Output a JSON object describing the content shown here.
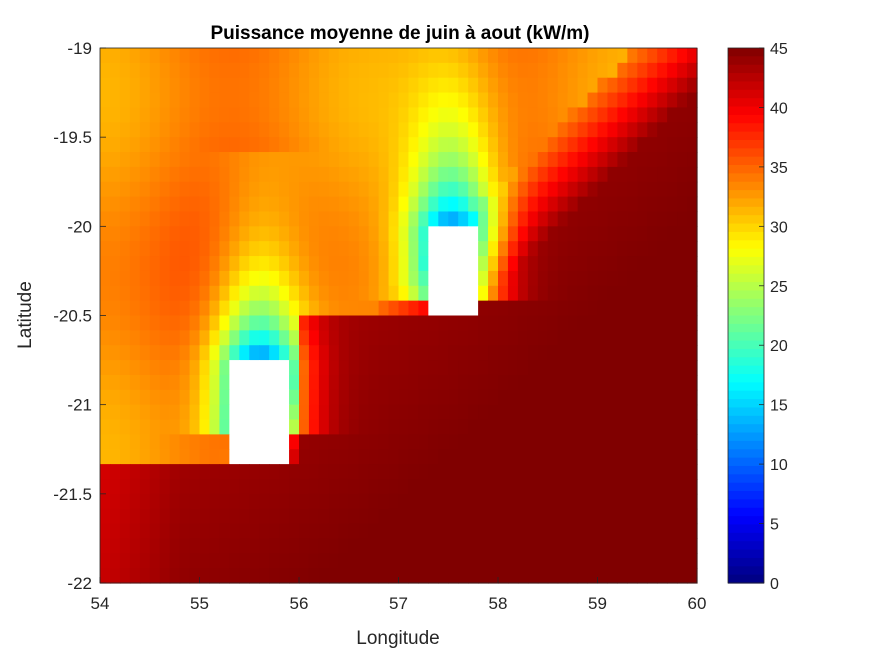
{
  "chart_data": {
    "type": "heatmap",
    "title": "Puissance moyenne de juin à aout (kW/m)",
    "xlabel": "Longitude",
    "ylabel": "Latitude",
    "xlim": [
      54,
      60
    ],
    "ylim": [
      -22,
      -19
    ],
    "x_ticks": [
      "54",
      "55",
      "56",
      "57",
      "58",
      "59",
      "60"
    ],
    "y_ticks": [
      "-19",
      "-19.5",
      "-20",
      "-20.5",
      "-21",
      "-21.5",
      "-22"
    ],
    "colorbar": {
      "min": 0,
      "max": 45,
      "colormap": "jet",
      "ticks": [
        "45",
        "40",
        "35",
        "30",
        "25",
        "20",
        "15",
        "10",
        "5",
        "0"
      ]
    },
    "grid": {
      "lon_start": 54.0,
      "lon_step": 0.1,
      "lon_count": 60,
      "lat_start": -19.0,
      "lat_step": -0.0833,
      "lat_count": 36
    },
    "islands": [
      {
        "name": "",
        "lon_range": [
          55.3,
          55.9
        ],
        "lat_range": [
          -21.35,
          -20.75
        ]
      },
      {
        "name": "",
        "lon_range": [
          57.3,
          57.8
        ],
        "lat_range": [
          -20.5,
          -20.0
        ]
      }
    ],
    "field_description_values": {
      "open_ocean_southeast": 45,
      "west_background": 34,
      "lee_minimum_near_islands": 10
    }
  }
}
